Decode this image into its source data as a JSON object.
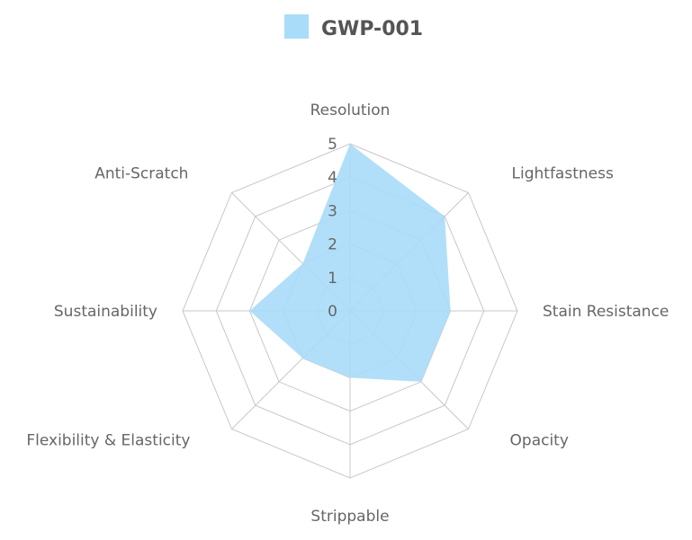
{
  "chart_data": {
    "type": "radar",
    "axes": [
      "Resolution",
      "Lightfastness",
      "Stain Resistance",
      "Opacity",
      "Strippable",
      "Flexibility & Elasticity",
      "Sustainability",
      "Anti-Scratch"
    ],
    "ticks": [
      "0",
      "1",
      "2",
      "3",
      "4",
      "5"
    ],
    "rlim": [
      0,
      5
    ],
    "series": [
      {
        "name": "GWP-001",
        "values": [
          5,
          4,
          3,
          3,
          2,
          2,
          3,
          2
        ],
        "color": "#a9dcf8",
        "opacity": 0.9
      }
    ],
    "legend": {
      "position": "top-center"
    },
    "grid": true
  }
}
